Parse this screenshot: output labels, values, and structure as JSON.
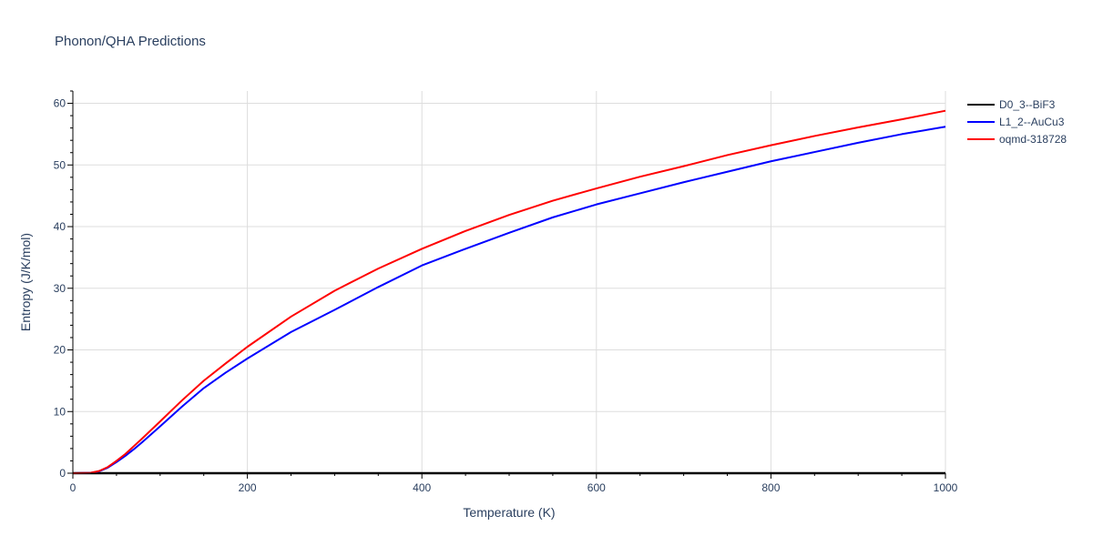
{
  "chart_data": {
    "type": "line",
    "title": "Phonon/QHA Predictions",
    "xlabel": "Temperature (K)",
    "ylabel": "Entropy (J/K/mol)",
    "xlim": [
      0,
      1000
    ],
    "ylim": [
      0,
      62
    ],
    "xticks": [
      0,
      200,
      400,
      600,
      800,
      1000
    ],
    "yticks": [
      0,
      10,
      20,
      30,
      40,
      50,
      60
    ],
    "grid": true,
    "legend_position": "top-right",
    "series": [
      {
        "name": "D0_3--BiF3",
        "color": "#000000",
        "x": [
          0,
          100,
          200,
          300,
          400,
          500,
          600,
          700,
          800,
          900,
          1000
        ],
        "y": [
          0,
          0,
          0,
          0,
          0,
          0,
          0,
          0,
          0,
          0,
          0
        ]
      },
      {
        "name": "L1_2--AuCu3",
        "color": "#0000ff",
        "x": [
          0,
          20,
          30,
          40,
          50,
          60,
          70,
          80,
          100,
          125,
          150,
          175,
          200,
          250,
          300,
          350,
          400,
          450,
          500,
          550,
          600,
          650,
          700,
          750,
          800,
          850,
          900,
          950,
          1000
        ],
        "y": [
          0,
          0.05,
          0.3,
          0.9,
          1.8,
          2.8,
          3.9,
          5.1,
          7.6,
          10.8,
          13.8,
          16.3,
          18.6,
          22.9,
          26.5,
          30.2,
          33.7,
          36.4,
          39.0,
          41.5,
          43.6,
          45.4,
          47.2,
          48.9,
          50.6,
          52.1,
          53.6,
          55.0,
          56.2
        ]
      },
      {
        "name": "oqmd-318728",
        "color": "#ff0000",
        "x": [
          0,
          20,
          30,
          40,
          50,
          60,
          70,
          80,
          100,
          125,
          150,
          175,
          200,
          250,
          300,
          350,
          400,
          450,
          500,
          550,
          600,
          650,
          700,
          750,
          800,
          850,
          900,
          950,
          1000
        ],
        "y": [
          0,
          0.05,
          0.35,
          1.0,
          2.0,
          3.1,
          4.4,
          5.7,
          8.4,
          11.8,
          15.0,
          17.8,
          20.5,
          25.4,
          29.6,
          33.2,
          36.4,
          39.3,
          41.9,
          44.2,
          46.2,
          48.1,
          49.8,
          51.6,
          53.2,
          54.7,
          56.1,
          57.4,
          58.8
        ]
      }
    ]
  }
}
